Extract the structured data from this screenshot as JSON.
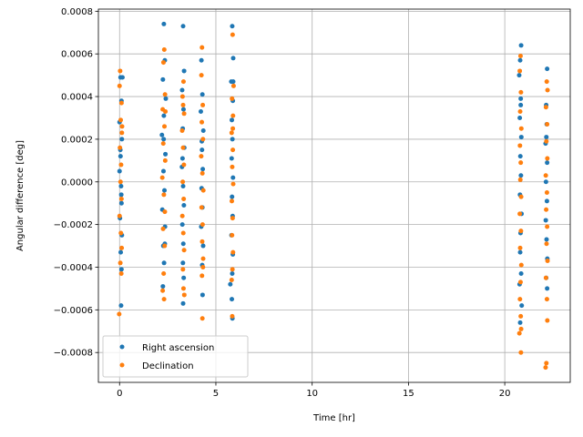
{
  "chart_data": {
    "type": "scatter",
    "title": "",
    "xlabel": "Time [hr]",
    "ylabel": "Angular difference [deg]",
    "xlim": [
      -1.1,
      23.4
    ],
    "ylim": [
      -0.00094,
      0.00081
    ],
    "grid": true,
    "legend_position": "lower-left",
    "x_ticks": [
      {
        "value": 0,
        "label": "0"
      },
      {
        "value": 5,
        "label": "5"
      },
      {
        "value": 10,
        "label": "10"
      },
      {
        "value": 15,
        "label": "15"
      },
      {
        "value": 20,
        "label": "20"
      }
    ],
    "y_ticks": [
      {
        "value": 0.0008,
        "label": "0.0008"
      },
      {
        "value": 0.0006,
        "label": "0.0006"
      },
      {
        "value": 0.0004,
        "label": "0.0004"
      },
      {
        "value": 0.0002,
        "label": "0.0002"
      },
      {
        "value": 0.0,
        "label": "0.0000"
      },
      {
        "value": -0.0002,
        "label": "−0.0002"
      },
      {
        "value": -0.0004,
        "label": "−0.0004"
      },
      {
        "value": -0.0006,
        "label": "−0.0006"
      },
      {
        "value": -0.0008,
        "label": "−0.0008"
      }
    ],
    "series": [
      {
        "name": "Right ascension",
        "color": "#1f77b4",
        "points": [
          {
            "x": 0.05,
            "y": 0.00049
          },
          {
            "x": 0.1,
            "y": 0.00038
          },
          {
            "x": 0.0,
            "y": 0.00028
          },
          {
            "x": 0.12,
            "y": 0.0002
          },
          {
            "x": 0.05,
            "y": 0.00012
          },
          {
            "x": 0.0,
            "y": 5e-05
          },
          {
            "x": 0.08,
            "y": -2e-05
          },
          {
            "x": 0.1,
            "y": -0.0001
          },
          {
            "x": 0.02,
            "y": -0.00017
          },
          {
            "x": 0.12,
            "y": -0.00025
          },
          {
            "x": 0.06,
            "y": -0.00033
          },
          {
            "x": 0.1,
            "y": -0.00041
          },
          {
            "x": 0.08,
            "y": -0.00058
          },
          {
            "x": 0.15,
            "y": 0.00049
          },
          {
            "x": 0.04,
            "y": 0.00015
          },
          {
            "x": 0.09,
            "y": -6e-05
          },
          {
            "x": 2.3,
            "y": 0.00074
          },
          {
            "x": 2.35,
            "y": 0.00057
          },
          {
            "x": 2.25,
            "y": 0.00048
          },
          {
            "x": 2.4,
            "y": 0.00039
          },
          {
            "x": 2.3,
            "y": 0.00031
          },
          {
            "x": 2.2,
            "y": 0.00022
          },
          {
            "x": 2.38,
            "y": 0.00013
          },
          {
            "x": 2.28,
            "y": 5e-05
          },
          {
            "x": 2.33,
            "y": -4e-05
          },
          {
            "x": 2.22,
            "y": -0.00013
          },
          {
            "x": 2.36,
            "y": -0.00021
          },
          {
            "x": 2.27,
            "y": -0.0003
          },
          {
            "x": 2.31,
            "y": -0.00038
          },
          {
            "x": 2.25,
            "y": -0.00049
          },
          {
            "x": 2.35,
            "y": -0.00029
          },
          {
            "x": 2.29,
            "y": 0.0002
          },
          {
            "x": 3.3,
            "y": 0.00073
          },
          {
            "x": 3.35,
            "y": 0.00052
          },
          {
            "x": 3.25,
            "y": 0.00043
          },
          {
            "x": 3.32,
            "y": 0.00034
          },
          {
            "x": 3.28,
            "y": 0.00025
          },
          {
            "x": 3.36,
            "y": 0.00016
          },
          {
            "x": 3.24,
            "y": 7e-05
          },
          {
            "x": 3.3,
            "y": -2e-05
          },
          {
            "x": 3.34,
            "y": -0.00011
          },
          {
            "x": 3.26,
            "y": -0.0002
          },
          {
            "x": 3.31,
            "y": -0.00029
          },
          {
            "x": 3.29,
            "y": -0.00038
          },
          {
            "x": 3.33,
            "y": -0.00045
          },
          {
            "x": 3.3,
            "y": -0.00057
          },
          {
            "x": 3.27,
            "y": 0.00011
          },
          {
            "x": 4.25,
            "y": 0.00057
          },
          {
            "x": 4.3,
            "y": 0.00041
          },
          {
            "x": 4.22,
            "y": 0.00033
          },
          {
            "x": 4.35,
            "y": 0.00024
          },
          {
            "x": 4.28,
            "y": 0.00015
          },
          {
            "x": 4.32,
            "y": 6e-05
          },
          {
            "x": 4.26,
            "y": -3e-05
          },
          {
            "x": 4.3,
            "y": -0.00012
          },
          {
            "x": 4.24,
            "y": -0.00021
          },
          {
            "x": 4.34,
            "y": -0.0003
          },
          {
            "x": 4.29,
            "y": -0.00039
          },
          {
            "x": 4.31,
            "y": -0.00053
          },
          {
            "x": 4.27,
            "y": 0.00019
          },
          {
            "x": 5.85,
            "y": 0.00073
          },
          {
            "x": 5.9,
            "y": 0.00058
          },
          {
            "x": 5.8,
            "y": 0.00047
          },
          {
            "x": 5.88,
            "y": 0.00038
          },
          {
            "x": 5.83,
            "y": 0.00029
          },
          {
            "x": 5.86,
            "y": 0.0002
          },
          {
            "x": 5.82,
            "y": 0.00011
          },
          {
            "x": 5.89,
            "y": 2e-05
          },
          {
            "x": 5.84,
            "y": -7e-05
          },
          {
            "x": 5.87,
            "y": -0.00016
          },
          {
            "x": 5.81,
            "y": -0.00025
          },
          {
            "x": 5.88,
            "y": -0.00034
          },
          {
            "x": 5.85,
            "y": -0.00043
          },
          {
            "x": 5.75,
            "y": -0.00048
          },
          {
            "x": 5.83,
            "y": -0.00055
          },
          {
            "x": 5.86,
            "y": -0.00064
          },
          {
            "x": 5.9,
            "y": 0.00047
          },
          {
            "x": 20.85,
            "y": 0.00064
          },
          {
            "x": 20.8,
            "y": 0.00057
          },
          {
            "x": 20.75,
            "y": 0.0005
          },
          {
            "x": 20.83,
            "y": 0.00039
          },
          {
            "x": 20.78,
            "y": 0.0003
          },
          {
            "x": 20.86,
            "y": 0.00021
          },
          {
            "x": 20.81,
            "y": 0.00012
          },
          {
            "x": 20.84,
            "y": 3e-05
          },
          {
            "x": 20.79,
            "y": -6e-05
          },
          {
            "x": 20.87,
            "y": -0.00015
          },
          {
            "x": 20.82,
            "y": -0.00024
          },
          {
            "x": 20.8,
            "y": -0.00033
          },
          {
            "x": 20.85,
            "y": -0.00043
          },
          {
            "x": 20.77,
            "y": -0.00048
          },
          {
            "x": 20.88,
            "y": -0.00058
          },
          {
            "x": 20.8,
            "y": -0.00066
          },
          {
            "x": 20.83,
            "y": 0.00036
          },
          {
            "x": 22.2,
            "y": 0.00053
          },
          {
            "x": 22.15,
            "y": 0.00036
          },
          {
            "x": 22.18,
            "y": 0.00027
          },
          {
            "x": 22.12,
            "y": 0.00018
          },
          {
            "x": 22.2,
            "y": 9e-05
          },
          {
            "x": 22.14,
            "y": 0.0
          },
          {
            "x": 22.19,
            "y": -9e-05
          },
          {
            "x": 22.13,
            "y": -0.00018
          },
          {
            "x": 22.17,
            "y": -0.00027
          },
          {
            "x": 22.21,
            "y": -0.00036
          },
          {
            "x": 22.15,
            "y": -0.00045
          },
          {
            "x": 22.2,
            "y": -0.0005
          },
          {
            "x": 22.16,
            "y": 0.00021
          }
        ]
      },
      {
        "name": "Declination",
        "color": "#ff7f0e",
        "points": [
          {
            "x": 0.03,
            "y": 0.00052
          },
          {
            "x": 0.0,
            "y": 0.00045
          },
          {
            "x": 0.1,
            "y": 0.00037
          },
          {
            "x": 0.06,
            "y": 0.00029
          },
          {
            "x": 0.12,
            "y": 0.00023
          },
          {
            "x": 0.02,
            "y": 0.00016
          },
          {
            "x": 0.08,
            "y": 8e-05
          },
          {
            "x": 0.05,
            "y": 0.0
          },
          {
            "x": 0.1,
            "y": -8e-05
          },
          {
            "x": 0.0,
            "y": -0.00016
          },
          {
            "x": 0.07,
            "y": -0.00024
          },
          {
            "x": 0.11,
            "y": -0.00031
          },
          {
            "x": 0.04,
            "y": -0.00038
          },
          {
            "x": 0.09,
            "y": -0.00043
          },
          {
            "x": -0.02,
            "y": -0.00062
          },
          {
            "x": 0.13,
            "y": 0.00026
          },
          {
            "x": 2.32,
            "y": 0.00062
          },
          {
            "x": 2.28,
            "y": 0.00056
          },
          {
            "x": 2.36,
            "y": 0.00041
          },
          {
            "x": 2.24,
            "y": 0.00034
          },
          {
            "x": 2.33,
            "y": 0.00026
          },
          {
            "x": 2.27,
            "y": 0.00018
          },
          {
            "x": 2.37,
            "y": 0.0001
          },
          {
            "x": 2.22,
            "y": 2e-05
          },
          {
            "x": 2.3,
            "y": -6e-05
          },
          {
            "x": 2.35,
            "y": -0.00014
          },
          {
            "x": 2.26,
            "y": -0.00022
          },
          {
            "x": 2.34,
            "y": -0.0003
          },
          {
            "x": 2.29,
            "y": -0.00043
          },
          {
            "x": 2.24,
            "y": -0.00051
          },
          {
            "x": 2.31,
            "y": -0.00055
          },
          {
            "x": 2.38,
            "y": 0.00033
          },
          {
            "x": 3.32,
            "y": 0.00047
          },
          {
            "x": 3.27,
            "y": 0.0004
          },
          {
            "x": 3.35,
            "y": 0.00032
          },
          {
            "x": 3.25,
            "y": 0.00024
          },
          {
            "x": 3.3,
            "y": 0.00016
          },
          {
            "x": 3.34,
            "y": 8e-05
          },
          {
            "x": 3.28,
            "y": 0.0
          },
          {
            "x": 3.33,
            "y": -8e-05
          },
          {
            "x": 3.26,
            "y": -0.00016
          },
          {
            "x": 3.31,
            "y": -0.00024
          },
          {
            "x": 3.35,
            "y": -0.00032
          },
          {
            "x": 3.29,
            "y": -0.00041
          },
          {
            "x": 3.32,
            "y": -0.0005
          },
          {
            "x": 3.36,
            "y": -0.00053
          },
          {
            "x": 3.3,
            "y": 0.00036
          },
          {
            "x": 4.28,
            "y": 0.00063
          },
          {
            "x": 4.25,
            "y": 0.0005
          },
          {
            "x": 4.32,
            "y": 0.00036
          },
          {
            "x": 4.27,
            "y": 0.00028
          },
          {
            "x": 4.33,
            "y": 0.0002
          },
          {
            "x": 4.24,
            "y": 0.00012
          },
          {
            "x": 4.3,
            "y": 4e-05
          },
          {
            "x": 4.35,
            "y": -4e-05
          },
          {
            "x": 4.26,
            "y": -0.00012
          },
          {
            "x": 4.31,
            "y": -0.0002
          },
          {
            "x": 4.29,
            "y": -0.00028
          },
          {
            "x": 4.34,
            "y": -0.00036
          },
          {
            "x": 4.28,
            "y": -0.00044
          },
          {
            "x": 4.33,
            "y": -0.0004
          },
          {
            "x": 4.3,
            "y": -0.00064
          },
          {
            "x": 5.87,
            "y": 0.00069
          },
          {
            "x": 5.92,
            "y": 0.00045
          },
          {
            "x": 5.84,
            "y": 0.00039
          },
          {
            "x": 5.89,
            "y": 0.00031
          },
          {
            "x": 5.82,
            "y": 0.00023
          },
          {
            "x": 5.88,
            "y": 0.00015
          },
          {
            "x": 5.85,
            "y": 7e-05
          },
          {
            "x": 5.9,
            "y": -1e-05
          },
          {
            "x": 5.83,
            "y": -9e-05
          },
          {
            "x": 5.87,
            "y": -0.00017
          },
          {
            "x": 5.84,
            "y": -0.00025
          },
          {
            "x": 5.89,
            "y": -0.00033
          },
          {
            "x": 5.86,
            "y": -0.00041
          },
          {
            "x": 5.82,
            "y": -0.00046
          },
          {
            "x": 5.85,
            "y": -0.00063
          },
          {
            "x": 5.88,
            "y": 0.00025
          },
          {
            "x": 20.82,
            "y": 0.00059
          },
          {
            "x": 20.78,
            "y": 0.00052
          },
          {
            "x": 20.84,
            "y": 0.00042
          },
          {
            "x": 20.8,
            "y": 0.00033
          },
          {
            "x": 20.86,
            "y": 0.00025
          },
          {
            "x": 20.79,
            "y": 0.00017
          },
          {
            "x": 20.83,
            "y": 9e-05
          },
          {
            "x": 20.81,
            "y": 1e-05
          },
          {
            "x": 20.85,
            "y": -7e-05
          },
          {
            "x": 20.78,
            "y": -0.00015
          },
          {
            "x": 20.84,
            "y": -0.00023
          },
          {
            "x": 20.8,
            "y": -0.00031
          },
          {
            "x": 20.86,
            "y": -0.00039
          },
          {
            "x": 20.82,
            "y": -0.00047
          },
          {
            "x": 20.79,
            "y": -0.00055
          },
          {
            "x": 20.83,
            "y": -0.00063
          },
          {
            "x": 20.85,
            "y": -0.00069
          },
          {
            "x": 20.76,
            "y": -0.00071
          },
          {
            "x": 20.84,
            "y": -0.0008
          },
          {
            "x": 22.18,
            "y": 0.00047
          },
          {
            "x": 22.22,
            "y": 0.00043
          },
          {
            "x": 22.14,
            "y": 0.00035
          },
          {
            "x": 22.2,
            "y": 0.00027
          },
          {
            "x": 22.16,
            "y": 0.00019
          },
          {
            "x": 22.21,
            "y": 0.00011
          },
          {
            "x": 22.13,
            "y": 3e-05
          },
          {
            "x": 22.19,
            "y": -5e-05
          },
          {
            "x": 22.15,
            "y": -0.00013
          },
          {
            "x": 22.2,
            "y": -0.00021
          },
          {
            "x": 22.17,
            "y": -0.00029
          },
          {
            "x": 22.22,
            "y": -0.00037
          },
          {
            "x": 22.14,
            "y": -0.00045
          },
          {
            "x": 22.19,
            "y": -0.00055
          },
          {
            "x": 22.21,
            "y": -0.00065
          },
          {
            "x": 22.16,
            "y": -0.00085
          },
          {
            "x": 22.12,
            "y": -0.00087
          }
        ]
      }
    ]
  }
}
